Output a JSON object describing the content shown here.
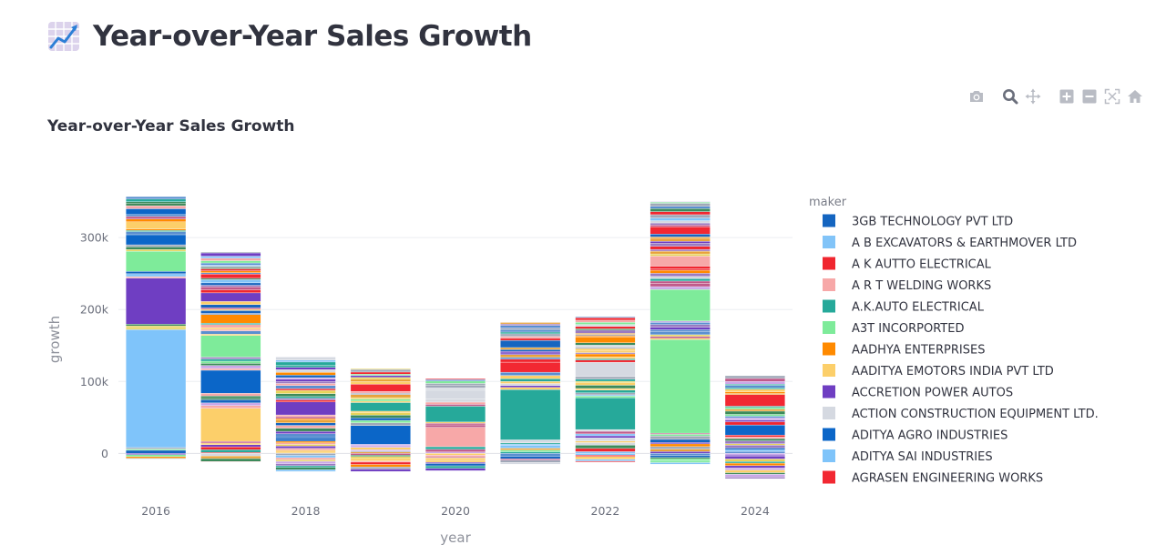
{
  "page": {
    "title": "Year-over-Year Sales Growth",
    "icon": "chart-increasing-icon"
  },
  "toolbar": [
    {
      "name": "camera-icon",
      "tooltip": "Download plot as a png"
    },
    {
      "name": "zoom-icon",
      "tooltip": "Zoom",
      "active": true
    },
    {
      "name": "pan-icon",
      "tooltip": "Pan"
    },
    {
      "name": "zoom-in-icon",
      "tooltip": "Zoom in"
    },
    {
      "name": "zoom-out-icon",
      "tooltip": "Zoom out"
    },
    {
      "name": "autoscale-icon",
      "tooltip": "Autoscale"
    },
    {
      "name": "reset-axes-icon",
      "tooltip": "Reset axes"
    }
  ],
  "chart_data": {
    "type": "bar",
    "barmode": "relative",
    "title": "Year-over-Year Sales Growth",
    "xlabel": "year",
    "ylabel": "growth",
    "x_ticks": [
      2016,
      2018,
      2020,
      2022,
      2024
    ],
    "y_ticks": [
      {
        "value": 0,
        "label": "0"
      },
      {
        "value": 100000,
        "label": "100k"
      },
      {
        "value": 200000,
        "label": "200k"
      },
      {
        "value": 300000,
        "label": "300k"
      }
    ],
    "xlim": [
      2015.5,
      2024.5
    ],
    "ylim": [
      -40000,
      390000
    ],
    "grid": true,
    "legend": {
      "title": "maker",
      "position": "right",
      "entries": [
        {
          "name": "3GB TECHNOLOGY PVT LTD",
          "color": "#1565c0"
        },
        {
          "name": "A B EXCAVATORS & EARTHMOVER LTD",
          "color": "#82c4f8"
        },
        {
          "name": "A K AUTTO ELECTRICAL",
          "color": "#f0262f"
        },
        {
          "name": "A R T WELDING WORKS",
          "color": "#f7a8a8"
        },
        {
          "name": "A.K.AUTO ELECTRICAL",
          "color": "#26a99a"
        },
        {
          "name": "A3T INCORPORTED",
          "color": "#7eeb9a"
        },
        {
          "name": "AADHYA ENTERPRISES",
          "color": "#ff8a00"
        },
        {
          "name": "AADITYA EMOTORS INDIA PVT LTD",
          "color": "#fccf6a"
        },
        {
          "name": "ACCRETION POWER AUTOS",
          "color": "#6f3ec2"
        },
        {
          "name": "ACTION CONSTRUCTION EQUIPMENT LTD.",
          "color": "#d5d9e1"
        },
        {
          "name": "ADITYA AGRO INDUSTRIES",
          "color": "#0b66c8"
        },
        {
          "name": "ADITYA SAI INDUSTRIES",
          "color": "#7fc4fa"
        },
        {
          "name": "AGRASEN ENGINEERING WORKS",
          "color": "#f22832"
        }
      ]
    },
    "other_makers_colors": [
      "#1565c0",
      "#82c4f8",
      "#f0262f",
      "#f7a8a8",
      "#26a99a",
      "#7eeb9a",
      "#ff8a00",
      "#fccf6a",
      "#6f3ec2",
      "#d5d9e1",
      "#c9a6e8",
      "#e8a33a",
      "#3c8a5a",
      "#9a7ac0",
      "#e6d35a",
      "#5a8fd0",
      "#a0a8b8",
      "#c05a8a"
    ],
    "bars": [
      {
        "year": 2016,
        "total_positive": 357000,
        "total_negative": -7000,
        "segments": [
          {
            "maker": "ADITYA SAI INDUSTRIES",
            "value": 164000,
            "color": "#7fc4fa"
          },
          {
            "maker": "ACCRETION POWER AUTOS",
            "value": 64000,
            "color": "#6f3ec2"
          },
          {
            "maker": "A3T INCORPORTED",
            "value": 28000,
            "color": "#7eeb9a"
          },
          {
            "maker": "ADITYA AGRO INDUSTRIES",
            "value": 14000,
            "color": "#0b66c8"
          },
          {
            "maker": "AADITYA EMOTORS INDIA PVT LTD",
            "value": 10000,
            "color": "#fccf6a"
          },
          {
            "maker": "ADITYA AGRO INDUSTRIES",
            "value": 8000,
            "color": "#0b66c8"
          }
        ]
      },
      {
        "year": 2017,
        "total_positive": 280000,
        "total_negative": -12000,
        "segments": [
          {
            "maker": "AADITYA EMOTORS INDIA PVT LTD",
            "value": 46000,
            "color": "#fccf6a"
          },
          {
            "maker": "ADITYA AGRO INDUSTRIES",
            "value": 32000,
            "color": "#0b66c8"
          },
          {
            "maker": "A3T INCORPORTED",
            "value": 30000,
            "color": "#7eeb9a"
          },
          {
            "maker": "AADHYA ENTERPRISES",
            "value": 12000,
            "color": "#ff8a00"
          },
          {
            "maker": "ACCRETION POWER AUTOS",
            "value": 12000,
            "color": "#6f3ec2"
          },
          {
            "maker": "AGRASEN ENGINEERING WORKS",
            "value": 6000,
            "color": "#f22832"
          }
        ]
      },
      {
        "year": 2018,
        "total_positive": 134000,
        "total_negative": -25000,
        "segments": [
          {
            "maker": "ACCRETION POWER AUTOS",
            "value": 18000,
            "color": "#6f3ec2"
          }
        ]
      },
      {
        "year": 2019,
        "total_positive": 118000,
        "total_negative": -25000,
        "segments": [
          {
            "maker": "ADITYA AGRO INDUSTRIES",
            "value": 26000,
            "color": "#0b66c8"
          },
          {
            "maker": "A.K.AUTO ELECTRICAL",
            "value": 12000,
            "color": "#26a99a"
          },
          {
            "maker": "AGRASEN ENGINEERING WORKS",
            "value": 10000,
            "color": "#f22832"
          }
        ]
      },
      {
        "year": 2020,
        "total_positive": 104000,
        "total_negative": -24000,
        "segments": [
          {
            "maker": "A R T WELDING WORKS",
            "value": 27000,
            "color": "#f7a8a8"
          },
          {
            "maker": "A.K.AUTO ELECTRICAL",
            "value": 22000,
            "color": "#26a99a"
          },
          {
            "maker": "ACTION CONSTRUCTION EQUIPMENT LTD.",
            "value": 12000,
            "color": "#d5d9e1"
          }
        ]
      },
      {
        "year": 2021,
        "total_positive": 182000,
        "total_negative": -15000,
        "segments": [
          {
            "maker": "A.K.AUTO ELECTRICAL",
            "value": 70000,
            "color": "#26a99a"
          },
          {
            "maker": "AGRASEN ENGINEERING WORKS",
            "value": 14000,
            "color": "#f22832"
          },
          {
            "maker": "3GB TECHNOLOGY PVT LTD",
            "value": 10000,
            "color": "#1565c0"
          }
        ]
      },
      {
        "year": 2022,
        "total_positive": 190000,
        "total_negative": -12000,
        "segments": [
          {
            "maker": "A.K.AUTO ELECTRICAL",
            "value": 44000,
            "color": "#26a99a"
          },
          {
            "maker": "ACTION CONSTRUCTION EQUIPMENT LTD.",
            "value": 20000,
            "color": "#d5d9e1"
          },
          {
            "maker": "AADHYA ENTERPRISES",
            "value": 8000,
            "color": "#ff8a00"
          }
        ]
      },
      {
        "year": 2023,
        "total_positive": 350000,
        "total_negative": -15000,
        "segments": [
          {
            "maker": "A3T INCORPORTED",
            "value": 130000,
            "color": "#7eeb9a"
          },
          {
            "maker": "A3T INCORPORTED",
            "value": 44000,
            "color": "#7eeb9a"
          },
          {
            "maker": "A R T WELDING WORKS",
            "value": 14000,
            "color": "#f7a8a8"
          },
          {
            "maker": "AGRASEN ENGINEERING WORKS",
            "value": 10000,
            "color": "#f22832"
          }
        ]
      },
      {
        "year": 2024,
        "total_positive": 108000,
        "total_negative": -35000,
        "segments": [
          {
            "maker": "ADITYA AGRO INDUSTRIES",
            "value": 14000,
            "color": "#0b66c8"
          },
          {
            "maker": "AGRASEN ENGINEERING WORKS",
            "value": 16000,
            "color": "#f22832"
          }
        ]
      }
    ]
  }
}
